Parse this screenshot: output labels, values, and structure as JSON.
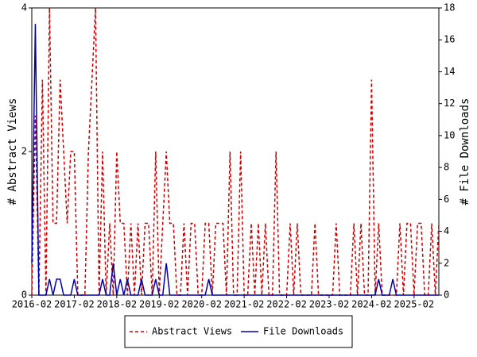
{
  "chart_data": {
    "type": "line",
    "categories": [
      "2016-02",
      null,
      null,
      null,
      null,
      null,
      null,
      null,
      null,
      null,
      null,
      null,
      "2017-02",
      null,
      null,
      null,
      null,
      null,
      null,
      null,
      null,
      null,
      null,
      null,
      "2018-02",
      null,
      null,
      null,
      null,
      null,
      null,
      null,
      null,
      null,
      null,
      null,
      "2019-02",
      null,
      null,
      null,
      null,
      null,
      null,
      null,
      null,
      null,
      null,
      null,
      "2020-02",
      null,
      null,
      null,
      null,
      null,
      null,
      null,
      null,
      null,
      null,
      null,
      "2021-02",
      null,
      null,
      null,
      null,
      null,
      null,
      null,
      null,
      null,
      null,
      null,
      "2022-02",
      null,
      null,
      null,
      null,
      null,
      null,
      null,
      null,
      null,
      null,
      null,
      "2023-02",
      null,
      null,
      null,
      null,
      null,
      null,
      null,
      null,
      null,
      null,
      null,
      "2024-02",
      null,
      null,
      null,
      null,
      null,
      null,
      null,
      null,
      null,
      null,
      null,
      "2025-02",
      null,
      null,
      null,
      null,
      null,
      null,
      null
    ],
    "series": [
      {
        "name": "Abstract Views",
        "color": "#cc0000",
        "axis": "y",
        "dashed": true,
        "values": [
          0,
          2.5,
          0,
          3,
          0,
          4,
          1,
          1,
          3,
          2,
          1,
          2,
          2,
          0,
          0,
          0,
          2,
          3,
          4,
          0,
          2,
          0,
          1,
          0,
          2,
          1,
          1,
          0,
          1,
          0,
          1,
          0,
          1,
          1,
          0,
          2,
          0,
          1,
          2,
          1,
          1,
          0,
          0,
          1,
          0,
          1,
          1,
          0,
          0,
          1,
          1,
          0,
          1,
          1,
          1,
          0,
          2,
          0,
          0,
          2,
          0,
          0,
          1,
          0,
          1,
          0,
          1,
          0,
          0,
          2,
          0,
          0,
          0,
          1,
          0,
          1,
          0,
          0,
          0,
          0,
          1,
          0,
          0,
          0,
          0,
          0,
          1,
          0,
          0,
          0,
          0,
          1,
          0,
          1,
          0,
          0,
          3,
          0,
          1,
          0,
          0,
          0,
          0,
          0,
          1,
          0,
          1,
          1,
          0,
          1,
          1,
          0,
          0,
          1,
          0,
          1
        ]
      },
      {
        "name": "File Downloads",
        "color": "#0000aa",
        "axis": "y2",
        "dashed": false,
        "values": [
          2,
          17,
          0,
          0,
          0,
          1,
          0,
          1,
          1,
          0,
          0,
          0,
          1,
          0,
          0,
          0,
          0,
          0,
          0,
          0,
          1,
          0,
          0,
          2,
          0,
          1,
          0,
          1,
          0,
          0,
          0,
          1,
          0,
          0,
          0,
          1,
          0,
          0,
          2,
          0,
          0,
          0,
          0,
          0,
          0,
          0,
          0,
          0,
          0,
          0,
          1,
          0,
          0,
          0,
          0,
          0,
          0,
          0,
          0,
          0,
          0,
          0,
          0,
          0,
          0,
          0,
          0,
          0,
          0,
          0,
          0,
          0,
          0,
          0,
          0,
          0,
          0,
          0,
          0,
          0,
          0,
          0,
          0,
          0,
          0,
          0,
          0,
          0,
          0,
          0,
          0,
          0,
          0,
          0,
          0,
          0,
          0,
          0,
          1,
          0,
          0,
          0,
          1,
          0,
          0,
          0,
          0,
          0,
          0,
          0,
          0,
          0,
          0,
          0,
          0,
          0
        ]
      }
    ],
    "ylabel": "# Abstract Views",
    "y2label": "# File Downloads",
    "ylim": [
      0,
      4
    ],
    "yticks": [
      0,
      2,
      4
    ],
    "y2lim": [
      0,
      18
    ],
    "y2ticks": [
      0,
      2,
      4,
      6,
      8,
      10,
      12,
      14,
      16,
      18
    ],
    "legend": "bottom"
  }
}
